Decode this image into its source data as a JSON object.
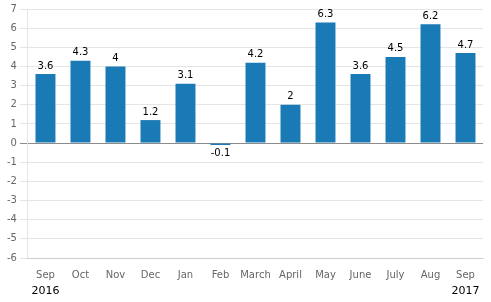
{
  "chart_data": {
    "type": "bar",
    "categories": [
      "Sep",
      "Oct",
      "Nov",
      "Dec",
      "Jan",
      "Feb",
      "March",
      "April",
      "May",
      "June",
      "July",
      "Aug",
      "Sep"
    ],
    "values": [
      3.6,
      4.3,
      4.0,
      1.2,
      3.1,
      -0.1,
      4.2,
      2.0,
      6.3,
      3.6,
      4.5,
      6.2,
      4.7
    ],
    "color": "#1a7ab5",
    "ylim": [
      -6,
      7
    ],
    "yticks": [
      -6,
      -5,
      -4,
      -3,
      -2,
      -1,
      0,
      1,
      2,
      3,
      4,
      5,
      6,
      7
    ],
    "grid": true,
    "data_labels": true,
    "annotations": [
      {
        "text": "2016",
        "x": 0
      },
      {
        "text": "2017",
        "x": 12
      }
    ]
  }
}
